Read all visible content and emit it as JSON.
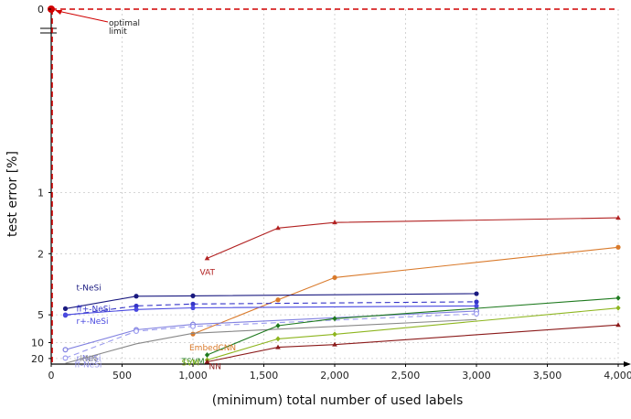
{
  "chart_data": {
    "type": "line",
    "xlabel": "(minimum) total number of used labels",
    "ylabel": "test error [%]",
    "xlim": [
      0,
      4000
    ],
    "x_ticks": [
      "0",
      "500",
      "1,000",
      "1,500",
      "2,000",
      "2,500",
      "3,000",
      "3,500",
      "4,000"
    ],
    "y_scale": "reciprocal",
    "y_ticks": [
      "0",
      "1",
      "2",
      "5",
      "10",
      "20"
    ],
    "grid": true,
    "annotation": {
      "text_line1": "optimal",
      "text_line2": "limit",
      "x": 0,
      "y": 0
    },
    "series": [
      {
        "name": "VAT",
        "color": "#b22222",
        "marker": "triangle",
        "dashed": false,
        "x": [
          1100,
          1600,
          2000,
          4000
        ],
        "y": [
          2.12,
          1.48,
          1.39,
          1.32
        ]
      },
      {
        "name": "EmbedCNN",
        "color": "#d97a2b",
        "marker": "dot",
        "dashed": false,
        "x": [
          1000,
          1600,
          2000,
          4000
        ],
        "y": [
          7.75,
          3.82,
          2.73,
          1.85
        ]
      },
      {
        "name": "t-NeSi",
        "color": "#1a1a80",
        "marker": "dot",
        "dashed": false,
        "x": [
          100,
          600,
          1000,
          3000
        ],
        "y": [
          4.45,
          3.6,
          3.58,
          3.46
        ]
      },
      {
        "name": "ff+-NeSi",
        "color": "#3535c8",
        "marker": "dot",
        "dashed": true,
        "x": [
          100,
          600,
          1000,
          3000
        ],
        "y": [
          5.05,
          4.24,
          4.1,
          3.95
        ]
      },
      {
        "name": "r+-NeSi",
        "color": "#4a4ae0",
        "marker": "dot",
        "dashed": false,
        "x": [
          100,
          600,
          1000,
          3000
        ],
        "y": [
          5.0,
          4.52,
          4.39,
          4.24
        ]
      },
      {
        "name": "r-NeSi",
        "color": "#8080e0",
        "marker": "circle",
        "dashed": false,
        "x": [
          100,
          600,
          1000,
          3000
        ],
        "y": [
          13.0,
          6.95,
          6.12,
          4.65
        ]
      },
      {
        "name": "ff-NeSi",
        "color": "#9a9aee",
        "marker": "circle",
        "dashed": true,
        "x": [
          100,
          600,
          1000,
          3000
        ],
        "y": [
          19.5,
          7.2,
          6.4,
          4.9
        ]
      },
      {
        "name": "kNN",
        "color": "#888888",
        "marker": "none",
        "dashed": false,
        "x": [
          100,
          600,
          1000,
          3000
        ],
        "y": [
          28.0,
          10.4,
          7.6,
          5.5
        ]
      },
      {
        "name": "TSVM",
        "color": "#1f7a1f",
        "marker": "diamond",
        "dashed": false,
        "x": [
          1100,
          1600,
          2000,
          4000
        ],
        "y": [
          16.5,
          6.3,
          5.4,
          3.71
        ]
      },
      {
        "name": "SVM",
        "color": "#8db51e",
        "marker": "diamond",
        "dashed": false,
        "x": [
          1100,
          1600,
          2000,
          4000
        ],
        "y": [
          22.0,
          8.9,
          7.8,
          4.4
        ]
      },
      {
        "name": "NN",
        "color": "#8b1a1a",
        "marker": "triangle",
        "dashed": false,
        "x": [
          1100,
          1600,
          2000,
          4000
        ],
        "y": [
          25.0,
          11.8,
          10.7,
          6.2
        ]
      }
    ]
  }
}
